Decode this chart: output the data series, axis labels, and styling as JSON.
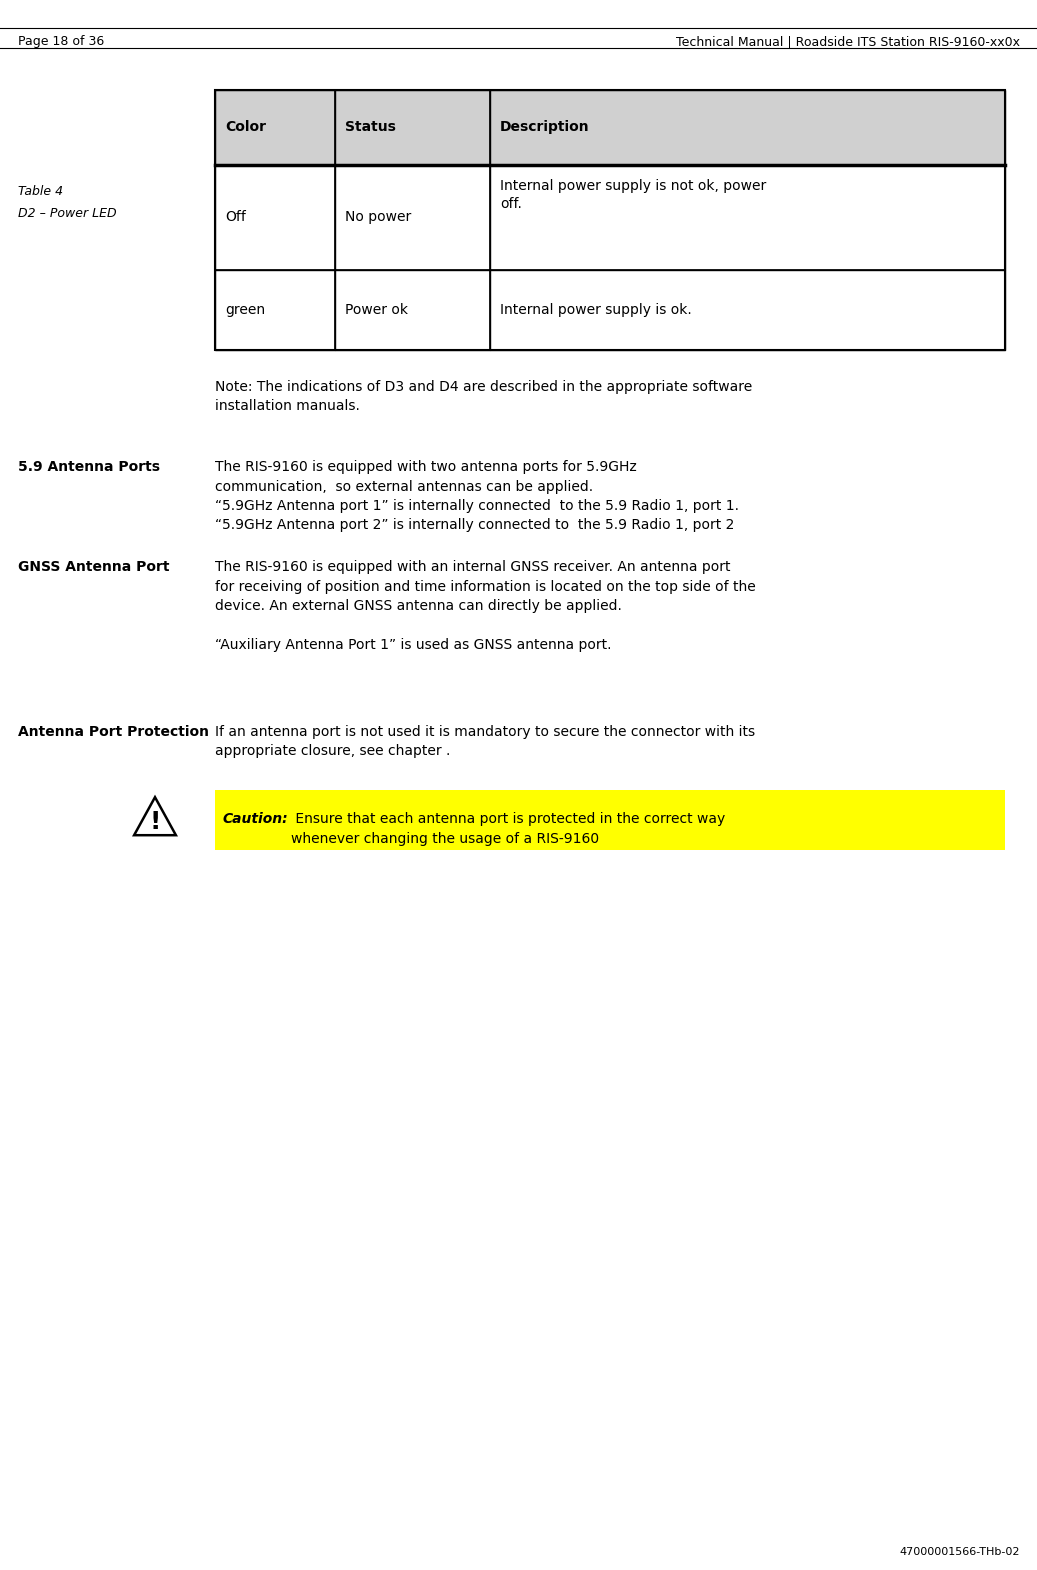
{
  "page_header_left": "Page 18 of 36",
  "page_header_right": "Technical Manual | Roadside ITS Station RIS-9160-xx0x",
  "page_footer_right": "47000001566-THb-02",
  "table_caption_line1": "Table 4",
  "table_caption_line2": "D2 – Power LED",
  "table_header": [
    "Color",
    "Status",
    "Description"
  ],
  "table_rows": [
    [
      "Off",
      "No power",
      "Internal power supply is not ok, power\noff."
    ],
    [
      "green",
      "Power ok",
      "Internal power supply is ok."
    ]
  ],
  "table_header_bg": "#d0d0d0",
  "table_bg": "#ffffff",
  "note_text": "Note: The indications of D3 and D4 are described in the appropriate software\ninstallation manuals.",
  "section_59_title": "5.9 Antenna Ports",
  "section_59_body": "The RIS-9160 is equipped with two antenna ports for 5.9GHz\ncommunication,  so external antennas can be applied.\n“5.9GHz Antenna port 1” is internally connected  to the 5.9 Radio 1, port 1.\n“5.9GHz Antenna port 2” is internally connected to  the 5.9 Radio 1, port 2",
  "section_gnss_title": "GNSS Antenna Port",
  "section_gnss_body": "The RIS-9160 is equipped with an internal GNSS receiver. An antenna port\nfor receiving of position and time information is located on the top side of the\ndevice. An external GNSS antenna can directly be applied.\n\n“Auxiliary Antenna Port 1” is used as GNSS antenna port.",
  "section_ant_title": "Antenna Port Protection",
  "section_ant_body": "If an antenna port is not used it is mandatory to secure the connector with its\nappropriate closure, see chapter .",
  "caution_label": "Caution:",
  "caution_text": " Ensure that each antenna port is protected in the correct way\nwhenever changing the usage of a RIS-9160",
  "caution_highlight": "#ffff00",
  "bg_color": "#ffffff",
  "text_color": "#000000",
  "header_font_size": 9,
  "body_font_size": 10,
  "table_font_size": 10
}
